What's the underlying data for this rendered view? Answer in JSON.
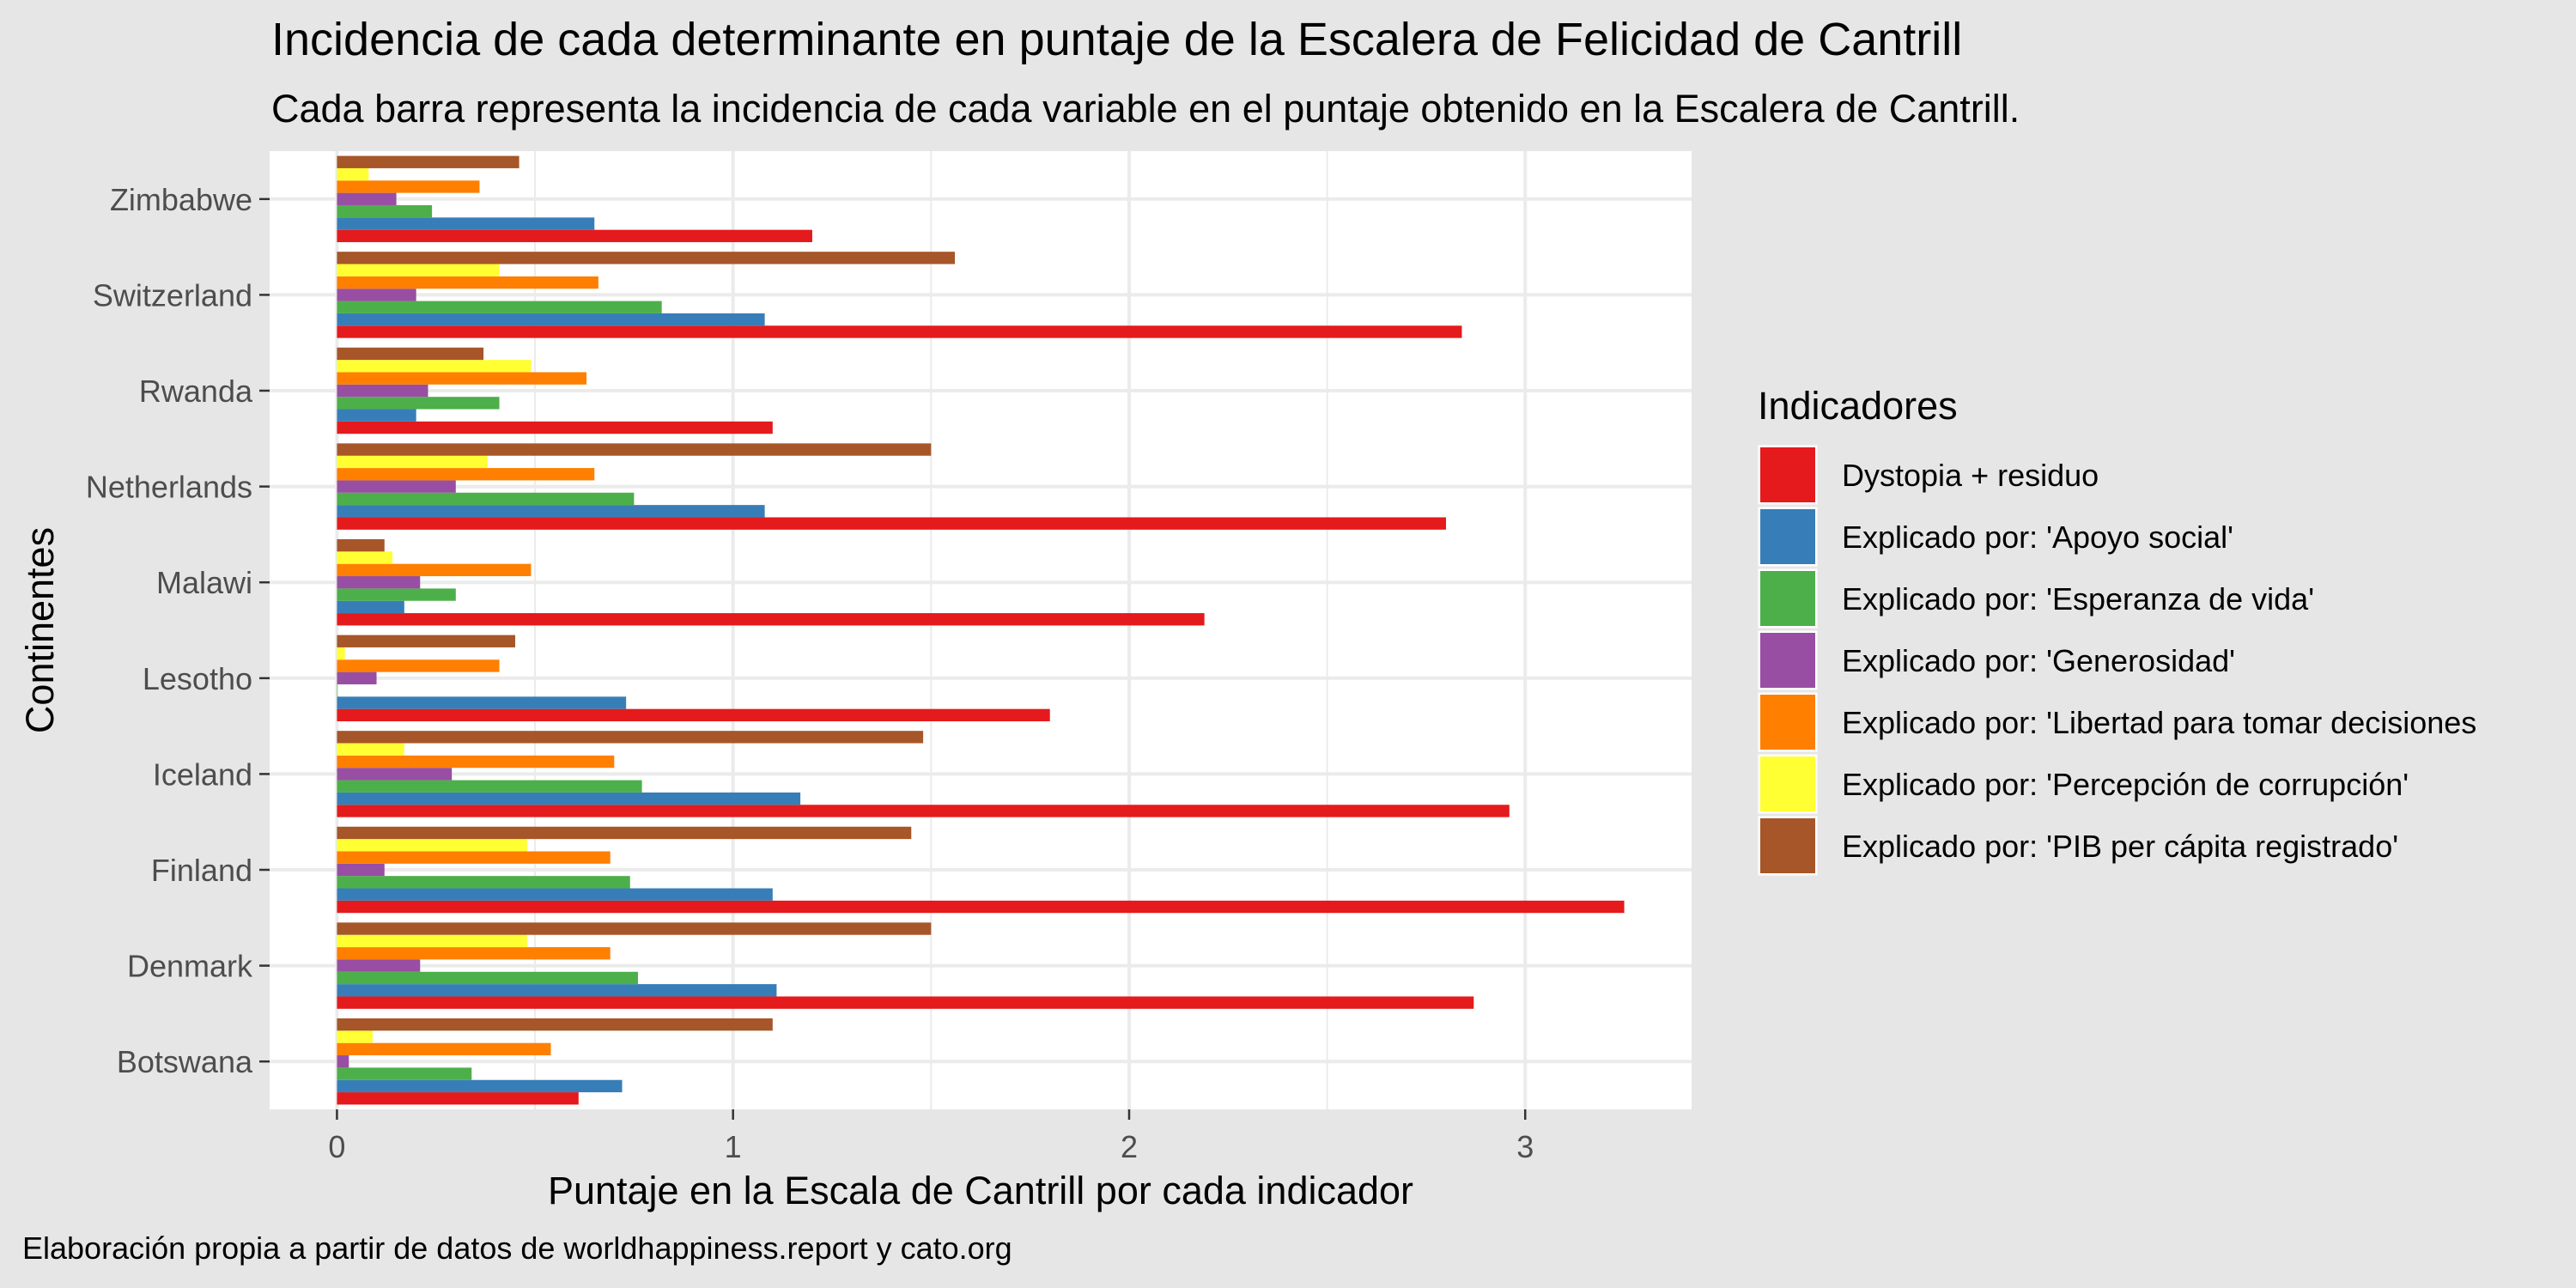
{
  "chart_data": {
    "type": "bar",
    "orientation": "horizontal",
    "title": "Incidencia de cada determinante en puntaje de la Escalera de Felicidad de Cantrill",
    "subtitle": "Cada barra representa la incidencia de cada variable en el puntaje obtenido en la Escalera de Cantrill.",
    "xlabel": "Puntaje en la Escala de Cantrill por cada indicador",
    "ylabel": "Continentes",
    "caption": "Elaboración propia a partir de datos de worldhappiness.report y cato.org",
    "xlim": [
      -0.17,
      3.42
    ],
    "x_ticks": [
      0,
      1,
      2,
      3
    ],
    "grid": true,
    "legend": {
      "title": "Indicadores",
      "position": "right"
    },
    "categories": [
      "Botswana",
      "Denmark",
      "Finland",
      "Iceland",
      "Lesotho",
      "Malawi",
      "Netherlands",
      "Rwanda",
      "Switzerland",
      "Zimbabwe"
    ],
    "series": [
      {
        "name": "Dystopia + residuo",
        "color": "#e41a1c",
        "values": [
          0.61,
          2.87,
          3.25,
          2.96,
          1.8,
          2.19,
          2.8,
          1.1,
          2.84,
          1.2
        ]
      },
      {
        "name": "Explicado por: 'Apoyo social'",
        "color": "#377eb8",
        "values": [
          0.72,
          1.11,
          1.1,
          1.17,
          0.73,
          0.17,
          1.08,
          0.2,
          1.08,
          0.65
        ]
      },
      {
        "name": "Explicado por: 'Esperanza de vida'",
        "color": "#4daf4a",
        "values": [
          0.34,
          0.76,
          0.74,
          0.77,
          0.0,
          0.3,
          0.75,
          0.41,
          0.82,
          0.24
        ]
      },
      {
        "name": "Explicado por: 'Generosidad'",
        "color": "#984ea3",
        "values": [
          0.03,
          0.21,
          0.12,
          0.29,
          0.1,
          0.21,
          0.3,
          0.23,
          0.2,
          0.15
        ]
      },
      {
        "name": "Explicado por: 'Libertad para tomar decisiones",
        "color": "#ff7f00",
        "values": [
          0.54,
          0.69,
          0.69,
          0.7,
          0.41,
          0.49,
          0.65,
          0.63,
          0.66,
          0.36
        ]
      },
      {
        "name": "Explicado por: 'Percepción de corrupción'",
        "color": "#ffff33",
        "values": [
          0.09,
          0.48,
          0.48,
          0.17,
          0.02,
          0.14,
          0.38,
          0.49,
          0.41,
          0.08
        ]
      },
      {
        "name": "Explicado por: 'PIB per cápita registrado'",
        "color": "#a65628",
        "values": [
          1.1,
          1.5,
          1.45,
          1.48,
          0.45,
          0.12,
          1.5,
          0.37,
          1.56,
          0.46
        ]
      }
    ]
  }
}
